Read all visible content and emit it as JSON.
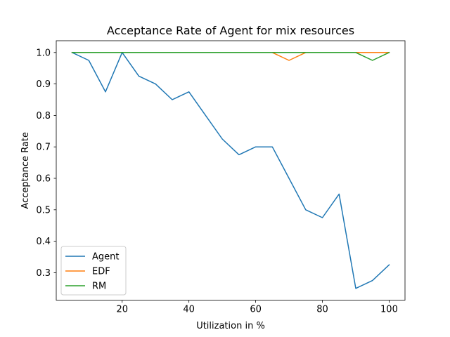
{
  "chart_data": {
    "type": "line",
    "title": "Acceptance Rate of Agent for mix resources",
    "xlabel": "Utilization in %",
    "ylabel": "Acceptance Rate",
    "xlim": [
      0.25,
      104.75
    ],
    "ylim": [
      0.2125,
      1.0375
    ],
    "xticks": [
      20,
      40,
      60,
      80,
      100
    ],
    "yticks": [
      0.3,
      0.4,
      0.5,
      0.6,
      0.7,
      0.8,
      0.9,
      1.0
    ],
    "grid": false,
    "legend_position": "lower-left",
    "x": [
      5,
      10,
      15,
      20,
      25,
      30,
      35,
      40,
      45,
      50,
      55,
      60,
      65,
      70,
      75,
      80,
      85,
      90,
      95,
      100
    ],
    "series": [
      {
        "name": "Agent",
        "color": "#1f77b4",
        "values": [
          1.0,
          0.975,
          0.875,
          1.0,
          0.925,
          0.9,
          0.85,
          0.875,
          0.8,
          0.725,
          0.675,
          0.7,
          0.7,
          0.6,
          0.5,
          0.475,
          0.55,
          0.25,
          0.275,
          0.325
        ]
      },
      {
        "name": "EDF",
        "color": "#ff7f0e",
        "values": [
          1.0,
          1.0,
          1.0,
          1.0,
          1.0,
          1.0,
          1.0,
          1.0,
          1.0,
          1.0,
          1.0,
          1.0,
          1.0,
          0.975,
          1.0,
          1.0,
          1.0,
          1.0,
          1.0,
          1.0
        ]
      },
      {
        "name": "RM",
        "color": "#2ca02c",
        "values": [
          1.0,
          1.0,
          1.0,
          1.0,
          1.0,
          1.0,
          1.0,
          1.0,
          1.0,
          1.0,
          1.0,
          1.0,
          1.0,
          1.0,
          1.0,
          1.0,
          1.0,
          1.0,
          0.975,
          1.0
        ]
      }
    ]
  }
}
